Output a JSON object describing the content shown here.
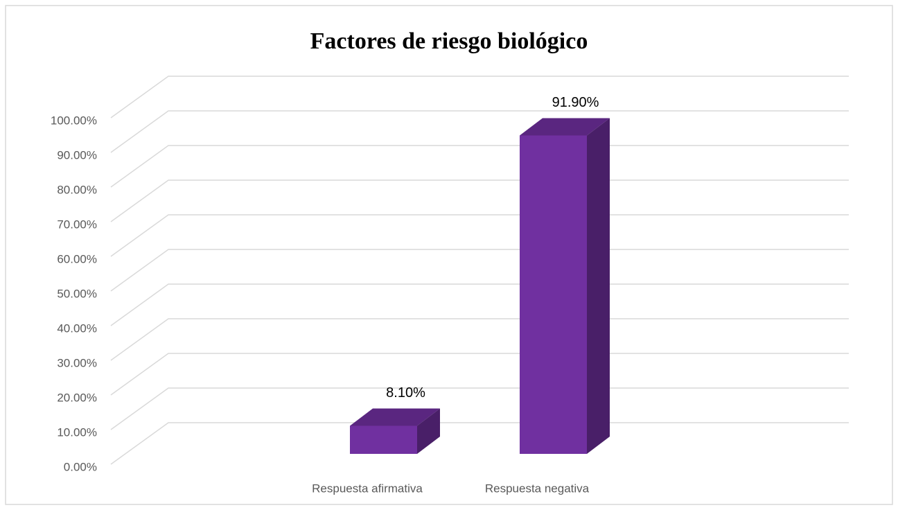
{
  "chart_data": {
    "type": "bar3d",
    "title": "Factores de riesgo biológico",
    "categories": [
      "Respuesta afirmativa",
      "Respuesta negativa"
    ],
    "values": [
      8.1,
      91.9
    ],
    "value_labels": [
      "8.10%",
      "91.90%"
    ],
    "color": "#7030a0",
    "ylim": [
      0,
      100
    ],
    "yticks": [
      {
        "value": 0,
        "label": "0.00%"
      },
      {
        "value": 10,
        "label": "10.00%"
      },
      {
        "value": 20,
        "label": "20.00%"
      },
      {
        "value": 30,
        "label": "30.00%"
      },
      {
        "value": 40,
        "label": "40.00%"
      },
      {
        "value": 50,
        "label": "50.00%"
      },
      {
        "value": 60,
        "label": "60.00%"
      },
      {
        "value": 70,
        "label": "70.00%"
      },
      {
        "value": 80,
        "label": "80.00%"
      },
      {
        "value": 90,
        "label": "90.00%"
      },
      {
        "value": 100,
        "label": "100.00%"
      }
    ],
    "grid": true
  }
}
